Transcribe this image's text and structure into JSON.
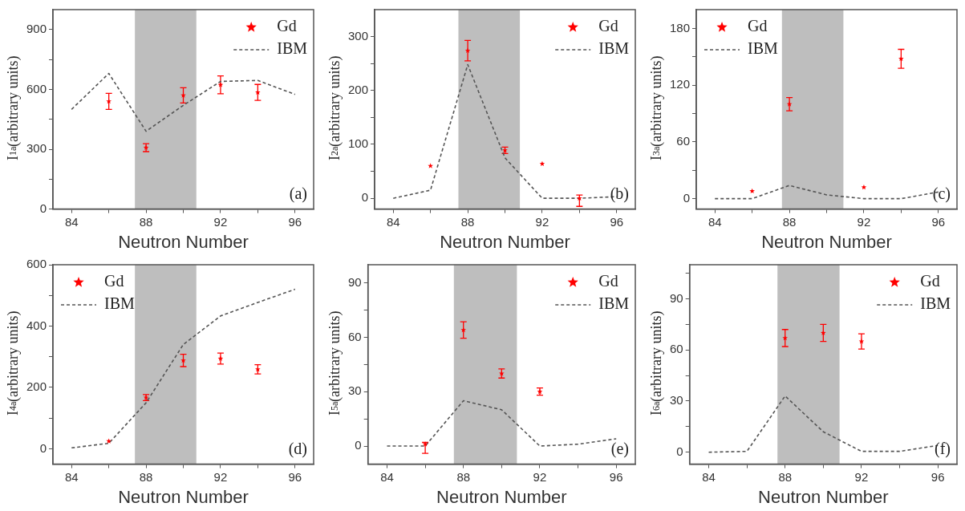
{
  "chart_data": [
    {
      "type": "scatter",
      "xlabel": "Neutron Number",
      "ylabel": "I$_{1}$$^{a}$(arbitrary units)",
      "xlim": [
        83,
        97
      ],
      "xticks": [
        84,
        {
          "value": 86,
          "label": null
        },
        88,
        {
          "value": 90,
          "label": null
        },
        92,
        {
          "value": 94,
          "label": null
        },
        96
      ],
      "ylim": [
        0,
        1000
      ],
      "yticks": [
        0,
        {
          "value": 150,
          "label": null
        },
        300,
        {
          "value": 450,
          "label": null
        },
        600,
        {
          "value": 750,
          "label": null
        },
        900
      ],
      "legend": "top right",
      "bands": [
        {
          "axis": "x",
          "from": 87.4,
          "to": 90.7,
          "color": "#bebebe"
        }
      ],
      "annotations": [
        "(a)"
      ],
      "series": [
        {
          "name": "Gd",
          "type": "scatter",
          "color": "#ff0000",
          "marker": "star",
          "x": [
            86,
            88,
            90,
            92,
            94
          ],
          "values": [
            540,
            308,
            570,
            623,
            585
          ],
          "errors": [
            40,
            20,
            38,
            45,
            40
          ]
        },
        {
          "name": "IBM",
          "type": "line",
          "color": "#555555",
          "marker": "none",
          "line_style": "dashed",
          "x": [
            84,
            86,
            88,
            90,
            92,
            94,
            96
          ],
          "values": [
            500,
            680,
            390,
            520,
            640,
            645,
            575
          ]
        }
      ]
    },
    {
      "type": "scatter",
      "xlabel": "Neutron Number",
      "ylabel": "I$_{2}$$^{a}$(arbitrary units)",
      "xlim": [
        83,
        97
      ],
      "xticks": [
        84,
        {
          "value": 86,
          "label": null
        },
        88,
        {
          "value": 90,
          "label": null
        },
        92,
        {
          "value": 94,
          "label": null
        },
        96
      ],
      "ylim": [
        -20,
        350
      ],
      "yticks": [
        0,
        {
          "value": 50,
          "label": null
        },
        100,
        {
          "value": 150,
          "label": null
        },
        200,
        {
          "value": 250,
          "label": null
        },
        300
      ],
      "legend": "top right",
      "bands": [
        {
          "axis": "x",
          "from": 87.5,
          "to": 90.8,
          "color": "#bebebe"
        }
      ],
      "annotations": [
        "(b)"
      ],
      "series": [
        {
          "name": "Gd",
          "type": "scatter",
          "color": "#ff0000",
          "marker": "star",
          "x": [
            86,
            88,
            90,
            92,
            94
          ],
          "values": [
            60,
            274,
            89,
            64,
            0
          ],
          "errors": [
            null,
            19,
            6,
            null,
            [
              -15,
              6
            ]
          ]
        },
        {
          "name": "IBM",
          "type": "line",
          "color": "#555555",
          "marker": "none",
          "line_style": "dashed",
          "x": [
            84,
            86,
            88,
            90,
            92,
            94,
            96
          ],
          "values": [
            0,
            15,
            248,
            75,
            0,
            0,
            3
          ]
        }
      ]
    },
    {
      "type": "scatter",
      "xlabel": "Neutron Number",
      "ylabel": "I$_{3}$$^{a}$(arbitrary units)",
      "xlim": [
        83,
        97
      ],
      "xticks": [
        84,
        {
          "value": 86,
          "label": null
        },
        88,
        {
          "value": 90,
          "label": null
        },
        92,
        {
          "value": 94,
          "label": null
        },
        96
      ],
      "ylim": [
        -11,
        200
      ],
      "yticks": [
        0,
        {
          "value": 30,
          "label": null
        },
        60,
        {
          "value": 90,
          "label": null
        },
        120,
        {
          "value": 150,
          "label": null
        },
        180
      ],
      "legend": "top left",
      "bands": [
        {
          "axis": "x",
          "from": 87.6,
          "to": 90.9,
          "color": "#bebebe"
        }
      ],
      "annotations": [
        "(c)"
      ],
      "series": [
        {
          "name": "Gd",
          "type": "scatter",
          "color": "#ff0000",
          "marker": "star",
          "x": [
            86,
            88,
            92,
            94
          ],
          "values": [
            8,
            100,
            12,
            148
          ],
          "errors": [
            null,
            7,
            null,
            10
          ]
        },
        {
          "name": "IBM",
          "type": "line",
          "color": "#555555",
          "marker": "none",
          "line_style": "dashed",
          "x": [
            84,
            86,
            88,
            90,
            92,
            94,
            96
          ],
          "values": [
            0,
            0,
            14,
            4,
            0,
            0,
            7
          ]
        }
      ]
    },
    {
      "type": "scatter",
      "xlabel": "Neutron Number",
      "ylabel": "I$_{4}$$^{a}$(arbitrary units)",
      "xlim": [
        83,
        97
      ],
      "xticks": [
        84,
        {
          "value": 86,
          "label": null
        },
        88,
        {
          "value": 90,
          "label": null
        },
        92,
        {
          "value": 94,
          "label": null
        },
        96
      ],
      "ylim": [
        -50,
        600
      ],
      "yticks": [
        0,
        {
          "value": 100,
          "label": null
        },
        200,
        {
          "value": 300,
          "label": null
        },
        400,
        {
          "value": 500,
          "label": null
        },
        600
      ],
      "legend": "top left",
      "bands": [
        {
          "axis": "x",
          "from": 87.4,
          "to": 90.7,
          "color": "#bebebe"
        }
      ],
      "annotations": [
        "(d)"
      ],
      "series": [
        {
          "name": "Gd",
          "type": "scatter",
          "color": "#ff0000",
          "marker": "star",
          "x": [
            86,
            88,
            90,
            92,
            94
          ],
          "values": [
            25,
            167,
            288,
            294,
            259
          ],
          "errors": [
            null,
            10,
            20,
            18,
            15
          ]
        },
        {
          "name": "IBM",
          "type": "line",
          "color": "#555555",
          "marker": "none",
          "line_style": "dashed",
          "x": [
            84,
            86,
            88,
            90,
            92,
            94,
            96
          ],
          "values": [
            3,
            18,
            150,
            340,
            433,
            477,
            520
          ]
        }
      ]
    },
    {
      "type": "scatter",
      "xlabel": "Neutron Number",
      "ylabel": "I$_{5}$$^{a}$(arbitrary units)",
      "xlim": [
        83,
        97
      ],
      "xticks": [
        84,
        {
          "value": 86,
          "label": null
        },
        88,
        {
          "value": 90,
          "label": null
        },
        92,
        {
          "value": 94,
          "label": null
        },
        96
      ],
      "ylim": [
        -10,
        100
      ],
      "yticks": [
        0,
        {
          "value": 15,
          "label": null
        },
        30,
        {
          "value": 45,
          "label": null
        },
        60,
        {
          "value": 75,
          "label": null
        },
        90
      ],
      "legend": "top right",
      "bands": [
        {
          "axis": "x",
          "from": 87.5,
          "to": 90.8,
          "color": "#bebebe"
        }
      ],
      "annotations": [
        "(e)"
      ],
      "series": [
        {
          "name": "Gd",
          "type": "scatter",
          "color": "#ff0000",
          "marker": "star",
          "x": [
            86,
            88,
            90,
            92
          ],
          "values": [
            1,
            64,
            40,
            30
          ],
          "errors": [
            [
              -4,
              2
            ],
            4.5,
            2.5,
            2
          ]
        },
        {
          "name": "IBM",
          "type": "line",
          "color": "#555555",
          "marker": "none",
          "line_style": "dashed",
          "x": [
            84,
            86,
            88,
            90,
            92,
            94,
            96
          ],
          "values": [
            0,
            0,
            25,
            20,
            0,
            1,
            4
          ]
        }
      ]
    },
    {
      "type": "scatter",
      "xlabel": "Neutron Number",
      "ylabel": "I$_{6}$$^{a}$(arbitrary units)",
      "xlim": [
        83,
        97
      ],
      "xticks": [
        84,
        {
          "value": 86,
          "label": null
        },
        88,
        {
          "value": 90,
          "label": null
        },
        92,
        {
          "value": 94,
          "label": null
        },
        96
      ],
      "ylim": [
        -7,
        110
      ],
      "yticks": [
        0,
        {
          "value": 15,
          "label": null
        },
        30,
        {
          "value": 45,
          "label": null
        },
        60,
        {
          "value": 75,
          "label": null
        },
        90,
        {
          "value": 105,
          "label": null
        }
      ],
      "legend": "top right",
      "bands": [
        {
          "axis": "x",
          "from": 87.6,
          "to": 90.85,
          "color": "#bebebe"
        }
      ],
      "annotations": [
        "(f)"
      ],
      "series": [
        {
          "name": "Gd",
          "type": "scatter",
          "color": "#ff0000",
          "marker": "star",
          "x": [
            88,
            90,
            92
          ],
          "values": [
            67,
            70,
            65
          ],
          "errors": [
            5,
            5,
            4.5
          ]
        },
        {
          "name": "IBM",
          "type": "line",
          "color": "#555555",
          "marker": "none",
          "line_style": "dashed",
          "x": [
            84,
            86,
            88,
            90,
            92,
            94,
            96
          ],
          "values": [
            0,
            0.5,
            33,
            12,
            0.5,
            0.5,
            4
          ]
        }
      ]
    }
  ]
}
